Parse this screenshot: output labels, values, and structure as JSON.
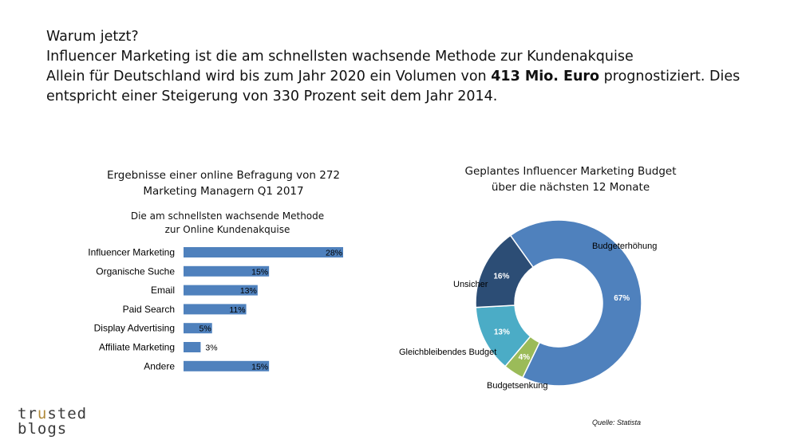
{
  "headline": {
    "line1": "Warum jetzt?",
    "line2": "Influencer Marketing ist die am schnellsten wachsende Methode zur Kundenakquise",
    "line3_pre": "Allein für Deutschland wird bis zum Jahr 2020 ein Volumen von ",
    "line3_bold": "413 Mio. Euro",
    "line3_post": " prognostiziert. Dies",
    "line4": "entspricht einer Steigerung von 330 Prozent seit dem Jahr 2014."
  },
  "logo": {
    "line1_a": "tr",
    "line1_u": "u",
    "line1_b": "sted",
    "line2": "blogs"
  },
  "source": "Quelle: Statista",
  "colors": {
    "bar": "#4f81bd"
  },
  "chart_data": [
    {
      "type": "bar",
      "orientation": "horizontal",
      "title_line1": "Ergebnisse einer online Befragung von 272",
      "title_line2": "Marketing Managern Q1 2017",
      "subtitle_line1": "Die am schnellsten wachsende Methode",
      "subtitle_line2": "zur Online Kundenakquise",
      "categories": [
        "Influencer Marketing",
        "Organische Suche",
        "Email",
        "Paid Search",
        "Display Advertising",
        "Affiliate Marketing",
        "Andere"
      ],
      "values": [
        28,
        15,
        13,
        11,
        5,
        3,
        15
      ],
      "labels": [
        "28%",
        "15%",
        "13%",
        "11%",
        "5%",
        "3%",
        "15%"
      ],
      "unit": "%",
      "xlim": [
        0,
        28
      ]
    },
    {
      "type": "pie",
      "variant": "donut",
      "title_line1": "Geplantes Influencer Marketing Budget",
      "title_line2": "über die nächsten 12 Monate",
      "slices": [
        {
          "name": "Budgeterhöhung",
          "value": 67,
          "label": "67%",
          "color": "#4f81bd"
        },
        {
          "name": "Budgetsenkung",
          "value": 4,
          "label": "4%",
          "color": "#9bbb59"
        },
        {
          "name": "Gleichbleibendes Budget",
          "value": 13,
          "label": "13%",
          "color": "#4bacc6"
        },
        {
          "name": "Unsicher",
          "value": 16,
          "label": "16%",
          "color": "#2c4d75"
        }
      ]
    }
  ]
}
